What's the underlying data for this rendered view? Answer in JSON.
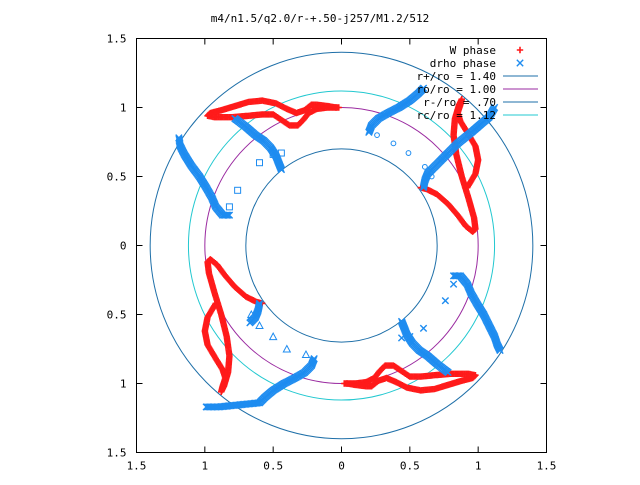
{
  "chart_data": {
    "type": "scatter",
    "title": "m4/n1.5/q2.0/r-+.50-j257/M1.2/512",
    "xlim": [
      -1.5,
      1.5
    ],
    "ylim": [
      -1.5,
      1.5
    ],
    "x_tick_labels": [
      "1.5",
      "1",
      "0.5",
      "0",
      "0.5",
      "1",
      "1.5"
    ],
    "y_tick_labels": [
      "1.5",
      "1",
      "0.5",
      "0",
      "0.5",
      "1",
      "1.5"
    ],
    "grid": false,
    "legend_position": "top-right",
    "circles": [
      {
        "name": "r+/ro = 1.40",
        "radius": 1.4,
        "color": "#1e6fa8"
      },
      {
        "name": "ro/ro = 1.00",
        "radius": 1.0,
        "color": "#9a2aa0"
      },
      {
        "name": "r-/ro = .70",
        "radius": 0.7,
        "color": "#1e6fa8"
      },
      {
        "name": "rc/ro = 1.12",
        "radius": 1.12,
        "color": "#22c8d0"
      }
    ],
    "series": [
      {
        "name": "W phase",
        "marker": "plus",
        "color": "#ff1a1a",
        "curves": [
          [
            [
              0.92,
              0.42
            ],
            [
              0.98,
              0.52
            ],
            [
              1.0,
              0.62
            ],
            [
              0.98,
              0.72
            ],
            [
              0.92,
              0.82
            ],
            [
              0.87,
              0.9
            ],
            [
              0.85,
              0.96
            ],
            [
              0.87,
              1.02
            ],
            [
              0.88,
              1.06
            ],
            [
              0.86,
              1.02
            ],
            [
              0.83,
              0.92
            ],
            [
              0.82,
              0.8
            ],
            [
              0.84,
              0.66
            ],
            [
              0.88,
              0.5
            ],
            [
              0.93,
              0.34
            ],
            [
              0.97,
              0.2
            ],
            [
              0.98,
              0.12
            ],
            [
              0.96,
              0.1
            ],
            [
              0.91,
              0.14
            ],
            [
              0.85,
              0.22
            ],
            [
              0.78,
              0.3
            ],
            [
              0.7,
              0.37
            ],
            [
              0.62,
              0.41
            ],
            [
              0.58,
              0.42
            ]
          ],
          [
            [
              -0.02,
              1.0
            ],
            [
              -0.1,
              1.0
            ],
            [
              -0.18,
              0.99
            ],
            [
              -0.24,
              0.96
            ],
            [
              -0.28,
              0.91
            ],
            [
              -0.32,
              0.87
            ],
            [
              -0.38,
              0.87
            ],
            [
              -0.44,
              0.91
            ],
            [
              -0.5,
              0.95
            ],
            [
              -0.58,
              0.95
            ],
            [
              -0.68,
              0.94
            ],
            [
              -0.8,
              0.93
            ],
            [
              -0.93,
              0.93
            ],
            [
              -0.98,
              0.94
            ],
            [
              -0.96,
              0.96
            ],
            [
              -0.88,
              0.98
            ],
            [
              -0.78,
              1.01
            ],
            [
              -0.68,
              1.04
            ],
            [
              -0.58,
              1.05
            ],
            [
              -0.48,
              1.03
            ],
            [
              -0.4,
              0.99
            ],
            [
              -0.33,
              0.96
            ],
            [
              -0.27,
              0.98
            ],
            [
              -0.22,
              1.02
            ],
            [
              -0.18,
              1.02
            ],
            [
              -0.1,
              1.01
            ],
            [
              -0.04,
              1.0
            ]
          ],
          [
            [
              -0.92,
              -0.42
            ],
            [
              -0.98,
              -0.52
            ],
            [
              -1.0,
              -0.62
            ],
            [
              -0.98,
              -0.72
            ],
            [
              -0.92,
              -0.82
            ],
            [
              -0.87,
              -0.9
            ],
            [
              -0.85,
              -0.96
            ],
            [
              -0.87,
              -1.02
            ],
            [
              -0.88,
              -1.06
            ],
            [
              -0.86,
              -1.02
            ],
            [
              -0.83,
              -0.92
            ],
            [
              -0.82,
              -0.8
            ],
            [
              -0.84,
              -0.66
            ],
            [
              -0.88,
              -0.5
            ],
            [
              -0.93,
              -0.34
            ],
            [
              -0.97,
              -0.2
            ],
            [
              -0.98,
              -0.12
            ],
            [
              -0.96,
              -0.1
            ],
            [
              -0.91,
              -0.14
            ],
            [
              -0.85,
              -0.22
            ],
            [
              -0.78,
              -0.3
            ],
            [
              -0.7,
              -0.37
            ],
            [
              -0.62,
              -0.41
            ],
            [
              -0.58,
              -0.42
            ]
          ],
          [
            [
              0.02,
              -1.0
            ],
            [
              0.1,
              -1.0
            ],
            [
              0.18,
              -0.99
            ],
            [
              0.24,
              -0.96
            ],
            [
              0.28,
              -0.91
            ],
            [
              0.32,
              -0.87
            ],
            [
              0.38,
              -0.87
            ],
            [
              0.44,
              -0.91
            ],
            [
              0.5,
              -0.95
            ],
            [
              0.58,
              -0.95
            ],
            [
              0.68,
              -0.94
            ],
            [
              0.8,
              -0.93
            ],
            [
              0.93,
              -0.93
            ],
            [
              0.98,
              -0.94
            ],
            [
              0.96,
              -0.96
            ],
            [
              0.88,
              -0.98
            ],
            [
              0.78,
              -1.01
            ],
            [
              0.68,
              -1.04
            ],
            [
              0.58,
              -1.05
            ],
            [
              0.48,
              -1.03
            ],
            [
              0.4,
              -0.99
            ],
            [
              0.33,
              -0.96
            ],
            [
              0.27,
              -0.98
            ],
            [
              0.22,
              -1.02
            ],
            [
              0.18,
              -1.02
            ],
            [
              0.1,
              -1.01
            ],
            [
              0.04,
              -1.0
            ]
          ]
        ]
      },
      {
        "name": "drho phase",
        "marker": "cross",
        "color": "#1e8cf0",
        "curves": [
          [
            [
              0.2,
              0.82
            ],
            [
              0.22,
              0.87
            ],
            [
              0.27,
              0.92
            ],
            [
              0.34,
              0.96
            ],
            [
              0.42,
              1.0
            ],
            [
              0.5,
              1.05
            ],
            [
              0.56,
              1.1
            ],
            [
              0.6,
              1.14
            ]
          ],
          [
            [
              0.6,
              0.42
            ],
            [
              0.61,
              0.47
            ],
            [
              0.63,
              0.52
            ],
            [
              0.67,
              0.56
            ],
            [
              0.72,
              0.61
            ],
            [
              0.78,
              0.67
            ],
            [
              0.85,
              0.74
            ],
            [
              0.95,
              0.82
            ],
            [
              1.02,
              0.88
            ],
            [
              1.08,
              0.93
            ],
            [
              1.12,
              1.0
            ]
          ],
          [
            [
              -0.44,
              0.55
            ],
            [
              -0.46,
              0.6
            ],
            [
              -0.48,
              0.65
            ],
            [
              -0.52,
              0.71
            ],
            [
              -0.57,
              0.76
            ],
            [
              -0.63,
              0.8
            ],
            [
              -0.7,
              0.86
            ],
            [
              -0.78,
              0.92
            ]
          ],
          [
            [
              -0.82,
              0.22
            ],
            [
              -0.87,
              0.22
            ],
            [
              -0.92,
              0.28
            ],
            [
              -0.95,
              0.35
            ],
            [
              -0.99,
              0.42
            ],
            [
              -1.04,
              0.5
            ],
            [
              -1.1,
              0.58
            ],
            [
              -1.15,
              0.66
            ],
            [
              -1.18,
              0.72
            ],
            [
              -1.19,
              0.78
            ]
          ],
          [
            [
              -0.2,
              -0.82
            ],
            [
              -0.22,
              -0.87
            ],
            [
              -0.27,
              -0.92
            ],
            [
              -0.34,
              -0.96
            ],
            [
              -0.42,
              -1.0
            ],
            [
              -0.5,
              -1.05
            ],
            [
              -0.56,
              -1.1
            ],
            [
              -0.6,
              -1.14
            ],
            [
              -0.7,
              -1.15
            ],
            [
              -0.8,
              -1.16
            ],
            [
              -0.9,
              -1.17
            ],
            [
              -0.99,
              -1.17
            ]
          ],
          [
            [
              -0.6,
              -0.42
            ],
            [
              -0.61,
              -0.47
            ],
            [
              -0.63,
              -0.52
            ],
            [
              -0.67,
              -0.56
            ]
          ],
          [
            [
              0.44,
              -0.55
            ],
            [
              0.46,
              -0.6
            ],
            [
              0.48,
              -0.65
            ],
            [
              0.52,
              -0.71
            ],
            [
              0.57,
              -0.76
            ],
            [
              0.63,
              -0.8
            ],
            [
              0.7,
              -0.86
            ],
            [
              0.78,
              -0.92
            ]
          ],
          [
            [
              0.82,
              -0.22
            ],
            [
              0.87,
              -0.22
            ],
            [
              0.92,
              -0.28
            ],
            [
              0.95,
              -0.35
            ],
            [
              0.99,
              -0.42
            ],
            [
              1.04,
              -0.5
            ],
            [
              1.08,
              -0.58
            ],
            [
              1.12,
              -0.66
            ],
            [
              1.14,
              -0.72
            ],
            [
              1.16,
              -0.76
            ]
          ]
        ]
      },
      {
        "name": "",
        "marker": "circle",
        "color": "#1e8cf0",
        "points": [
          [
            0.26,
            0.8
          ],
          [
            0.38,
            0.74
          ],
          [
            0.49,
            0.67
          ],
          [
            0.61,
            0.57
          ],
          [
            0.66,
            0.5
          ]
        ]
      },
      {
        "name": "",
        "marker": "square",
        "color": "#1e8cf0",
        "points": [
          [
            -0.44,
            0.67
          ],
          [
            -0.5,
            0.66
          ],
          [
            -0.6,
            0.6
          ],
          [
            -0.76,
            0.4
          ],
          [
            -0.82,
            0.28
          ]
        ]
      },
      {
        "name": "",
        "marker": "triangle",
        "color": "#1e8cf0",
        "points": [
          [
            -0.26,
            -0.79
          ],
          [
            -0.4,
            -0.75
          ],
          [
            -0.5,
            -0.66
          ],
          [
            -0.6,
            -0.58
          ],
          [
            -0.66,
            -0.5
          ]
        ]
      },
      {
        "name": "",
        "marker": "x",
        "color": "#1e8cf0",
        "points": [
          [
            0.44,
            -0.67
          ],
          [
            0.5,
            -0.66
          ],
          [
            0.6,
            -0.6
          ],
          [
            0.76,
            -0.4
          ],
          [
            0.82,
            -0.28
          ]
        ]
      }
    ],
    "legend": [
      {
        "label": "W phase",
        "marker": "plus",
        "color": "#ff1a1a"
      },
      {
        "label": "drho phase",
        "marker": "cross",
        "color": "#1e8cf0"
      },
      {
        "label": "r+/ro = 1.40",
        "line": true,
        "color": "#1e6fa8"
      },
      {
        "label": "ro/ro = 1.00",
        "line": true,
        "color": "#9a2aa0"
      },
      {
        "label": "r-/ro = .70",
        "line": true,
        "color": "#1e6fa8"
      },
      {
        "label": "rc/ro = 1.12",
        "line": true,
        "color": "#22c8d0"
      }
    ]
  }
}
